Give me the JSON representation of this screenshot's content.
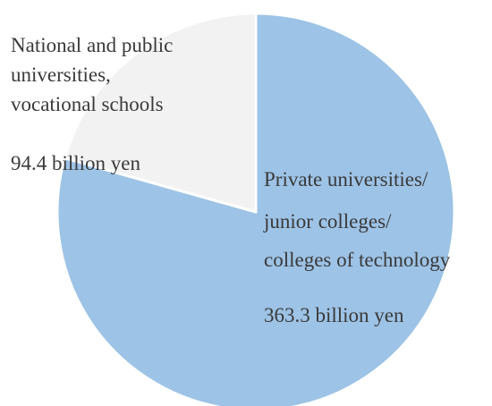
{
  "chart_data": {
    "type": "pie",
    "title": "",
    "slices": [
      {
        "label_lines": [
          "Private universities/",
          "junior colleges/",
          "colleges of technology"
        ],
        "value_text": "363.3 billion yen",
        "value": 363.3,
        "color": "#9DC3E6"
      },
      {
        "label_lines": [
          "National and public",
          "universities,",
          "vocational schools"
        ],
        "value_text": "94.4 billion yen",
        "value": 94.4,
        "color": "#F2F2F2"
      }
    ],
    "start_angle": "12 o'clock, clockwise"
  }
}
